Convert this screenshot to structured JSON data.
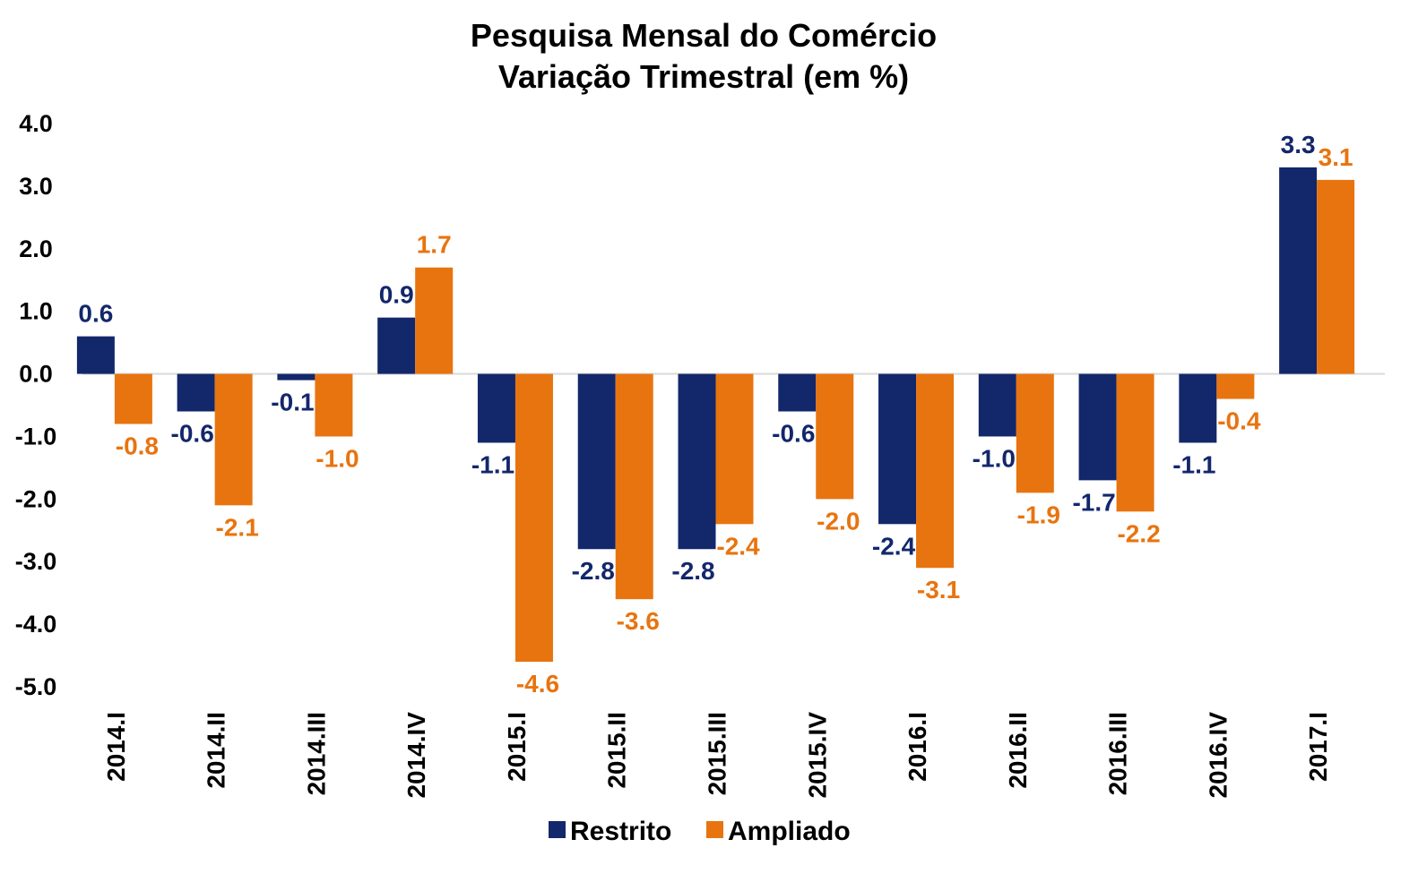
{
  "chart_data": {
    "type": "bar",
    "title": [
      "Pesquisa Mensal do Comércio",
      "Variação Trimestral (em %)"
    ],
    "categories": [
      "2014.I",
      "2014.II",
      "2014.III",
      "2014.IV",
      "2015.I",
      "2015.II",
      "2015.III",
      "2015.IV",
      "2016.I",
      "2016.II",
      "2016.III",
      "2016.IV",
      "2017.I"
    ],
    "series": [
      {
        "name": "Restrito",
        "color": "#13276B",
        "values": [
          0.6,
          -0.6,
          -0.1,
          0.9,
          -1.1,
          -2.8,
          -2.8,
          -0.6,
          -2.4,
          -1.0,
          -1.7,
          -1.1,
          3.3
        ],
        "labels": [
          "0.6",
          "-0.6",
          "-0.1",
          "0.9",
          "-1.1",
          "-2.8",
          "-2.8",
          "-0.6",
          "-2.4",
          "-1.0",
          "-1.7",
          "-1.1",
          "3.3"
        ]
      },
      {
        "name": "Ampliado",
        "color": "#E8740F",
        "values": [
          -0.8,
          -2.1,
          -1.0,
          1.7,
          -4.6,
          -3.6,
          -2.4,
          -2.0,
          -3.1,
          -1.9,
          -2.2,
          -0.4,
          3.1
        ],
        "labels": [
          "-0.8",
          "-2.1",
          "-1.0",
          "1.7",
          "-4.6",
          "-3.6",
          "-2.4",
          "-2.0",
          "-3.1",
          "-1.9",
          "-2.2",
          "-0.4",
          "3.1"
        ]
      }
    ],
    "ylim": [
      -5.0,
      4.0
    ],
    "yticks": [
      4.0,
      3.0,
      2.0,
      1.0,
      0.0,
      -1.0,
      -2.0,
      -3.0,
      -4.0,
      -5.0
    ],
    "ytick_labels": [
      "4.0",
      "3.0",
      "2.0",
      "1.0",
      "0.0",
      "-1.0",
      "-2.0",
      "-3.0",
      "-4.0",
      "-5.0"
    ],
    "grid": false,
    "legend_position": "bottom",
    "xlabel": "",
    "ylabel": ""
  }
}
